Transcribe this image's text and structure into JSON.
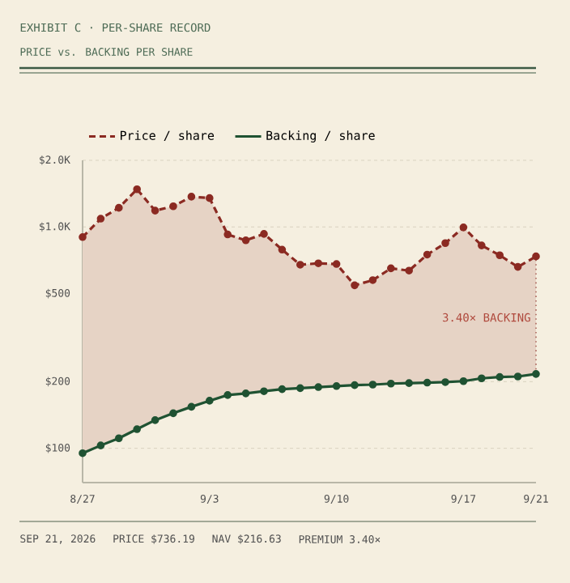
{
  "chart_data": {
    "type": "line",
    "title": "EXHIBIT C · PER-SHARE RECORD",
    "subtitle": "PRICE vs. BACKING PER SHARE",
    "x": [
      "2026-08-27",
      "2026-08-28",
      "2026-08-29",
      "2026-08-30",
      "2026-08-31",
      "2026-09-01",
      "2026-09-02",
      "2026-09-03",
      "2026-09-04",
      "2026-09-05",
      "2026-09-06",
      "2026-09-07",
      "2026-09-08",
      "2026-09-09",
      "2026-09-10",
      "2026-09-11",
      "2026-09-12",
      "2026-09-13",
      "2026-09-14",
      "2026-09-15",
      "2026-09-16",
      "2026-09-17",
      "2026-09-18",
      "2026-09-19",
      "2026-09-20",
      "2026-09-21"
    ],
    "series": [
      {
        "name": "Price / share",
        "color": "#8b2a22",
        "line_style": "dashed",
        "values": [
          900,
          1090,
          1220,
          1480,
          1185,
          1240,
          1370,
          1350,
          925,
          870,
          930,
          790,
          675,
          685,
          680,
          545,
          575,
          650,
          635,
          750,
          845,
          995,
          825,
          745,
          660,
          736.19
        ],
        "lower": [
          95,
          103,
          111,
          122,
          134,
          144,
          154,
          164,
          174,
          177,
          181,
          185,
          187,
          189,
          191,
          193,
          194,
          196,
          197,
          198,
          199,
          201,
          207,
          210,
          211,
          216.63
        ],
        "upper": [
          900,
          1090,
          1220,
          1480,
          1185,
          1240,
          1370,
          1350,
          925,
          870,
          930,
          790,
          675,
          685,
          680,
          545,
          575,
          650,
          635,
          750,
          845,
          995,
          825,
          745,
          660,
          736.19
        ]
      },
      {
        "name": "Backing / share",
        "color": "#1f5232",
        "line_style": "solid",
        "values": [
          95,
          103,
          111,
          122,
          134,
          144,
          154,
          164,
          174,
          177,
          181,
          185,
          187,
          189,
          191,
          193,
          194,
          196,
          197,
          198,
          199,
          201,
          207,
          210,
          211,
          216.63
        ]
      }
    ],
    "log": true,
    "xlim": [
      "2026-08-27",
      "2026-09-21"
    ],
    "xticks": [
      {
        "value": "2026-08-27",
        "label": "8/27"
      },
      {
        "value": "2026-09-03",
        "label": "9/3"
      },
      {
        "value": "2026-09-10",
        "label": "9/10"
      },
      {
        "value": "2026-09-17",
        "label": "9/17"
      },
      {
        "value": "2026-09-21",
        "label": "9/21"
      }
    ],
    "ylim": [
      70,
      2000
    ],
    "yticks": [
      {
        "value": 100,
        "label": "$100"
      },
      {
        "value": 200,
        "label": "$200"
      },
      {
        "value": 500,
        "label": "$500"
      },
      {
        "value": 1000,
        "label": "$1.0K"
      },
      {
        "value": 2000,
        "label": "$2.0K"
      }
    ],
    "grid": "y",
    "legend": "top",
    "marker": "circle",
    "annotations": [
      {
        "text": "3.40× BACKING",
        "x": "2026-09-21",
        "y": 390
      },
      "SEP 21, 2026",
      "PRICE $736.19",
      "NAV $216.63",
      "PREMIUM 3.40×"
    ]
  }
}
